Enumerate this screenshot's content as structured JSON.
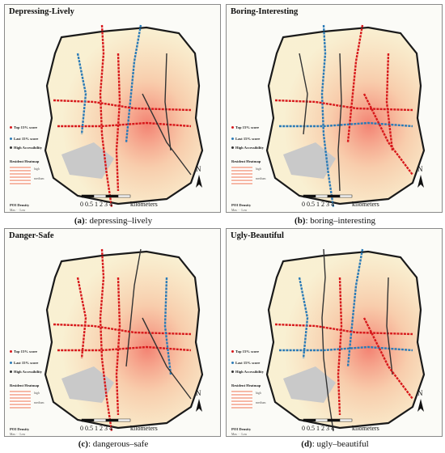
{
  "panels": [
    {
      "id": "a",
      "title": "Depressing-Lively",
      "caption_letter": "(a)",
      "caption_text": ": depressing–lively"
    },
    {
      "id": "b",
      "title": "Boring-Interesting",
      "caption_letter": "(b)",
      "caption_text": ": boring–interesting"
    },
    {
      "id": "c",
      "title": "Danger-Safe",
      "caption_letter": "(c)",
      "caption_text": ": dangerous–safe"
    },
    {
      "id": "d",
      "title": "Ugly-Beautiful",
      "caption_letter": "(d)",
      "caption_text": ": ugly–beautiful"
    }
  ],
  "legend": {
    "top": "Top 15% score",
    "last": "Last 15% score",
    "access": "High Accessibility",
    "heatmap": "Resident Heatmap",
    "heat_high": "high",
    "heat_medium": "medium",
    "poi": "POI Density",
    "poi_values": "Max  ·  ·  Low"
  },
  "scale": {
    "ticks": "0 0.5 1    2     3     4",
    "unit": "kilometers"
  },
  "north": "N",
  "colors": {
    "top": "#d7191c",
    "last": "#2c7bb6",
    "access": "#333333",
    "heat": "#f4a582",
    "boundary": "#1a1a1a"
  }
}
